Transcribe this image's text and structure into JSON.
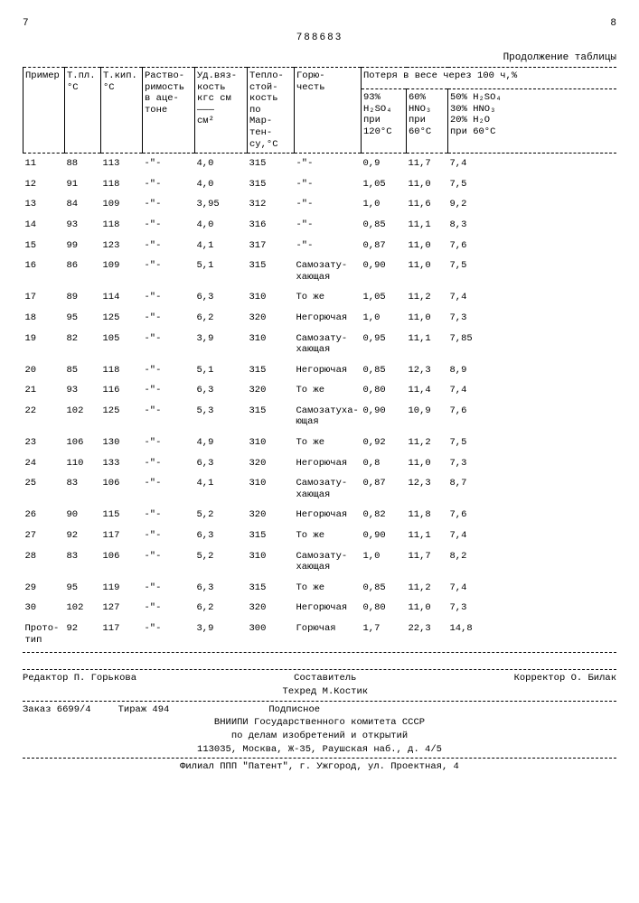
{
  "page_left": "7",
  "page_right": "8",
  "doc_number": "788683",
  "caption": "Продолжение таблицы",
  "headers": {
    "c0": "Пример",
    "c1": "Т.пл.\n°C",
    "c2": "Т.кип.\n°C",
    "c3": "Раство-\nримость\nв аце-\nтоне",
    "c4": "Уд.вяз-\nкость\nкгс см\n———\nсм²",
    "c5": "Тепло-\nстой-\nкость\nпо\nМар-\nтен-\nсу,°C",
    "c6": "Горю-\nчесть",
    "loss_top": "Потеря в весе через 100 ч,%",
    "l1": "93%\nH₂SO₄\nпри\n120°C",
    "l2": "60%\nHNO₃\nпри\n60°C",
    "l3": "50% H₂SO₄\n30% HNO₃\n20% H₂O\nпри 60°C"
  },
  "rows": [
    {
      "n": "11",
      "tpl": "88",
      "tk": "113",
      "sol": "-\"-",
      "v": "4,0",
      "ts": "315",
      "g": "-\"-",
      "l1": "0,9",
      "l2": "11,7",
      "l3": "7,4"
    },
    {
      "n": "12",
      "tpl": "91",
      "tk": "118",
      "sol": "-\"-",
      "v": "4,0",
      "ts": "315",
      "g": "-\"-",
      "l1": "1,05",
      "l2": "11,0",
      "l3": "7,5"
    },
    {
      "n": "13",
      "tpl": "84",
      "tk": "109",
      "sol": "-\"-",
      "v": "3,95",
      "ts": "312",
      "g": "-\"-",
      "l1": "1,0",
      "l2": "11,6",
      "l3": "9,2"
    },
    {
      "n": "14",
      "tpl": "93",
      "tk": "118",
      "sol": "-\"-",
      "v": "4,0",
      "ts": "316",
      "g": "-\"-",
      "l1": "0,85",
      "l2": "11,1",
      "l3": "8,3"
    },
    {
      "n": "15",
      "tpl": "99",
      "tk": "123",
      "sol": "-\"-",
      "v": "4,1",
      "ts": "317",
      "g": "-\"-",
      "l1": "0,87",
      "l2": "11,0",
      "l3": "7,6"
    },
    {
      "n": "16",
      "tpl": "86",
      "tk": "109",
      "sol": "-\"-",
      "v": "5,1",
      "ts": "315",
      "g": "Самозату-\nхающая",
      "l1": "0,90",
      "l2": "11,0",
      "l3": "7,5"
    },
    {
      "n": "17",
      "tpl": "89",
      "tk": "114",
      "sol": "-\"-",
      "v": "6,3",
      "ts": "310",
      "g": "То же",
      "l1": "1,05",
      "l2": "11,2",
      "l3": "7,4"
    },
    {
      "n": "18",
      "tpl": "95",
      "tk": "125",
      "sol": "-\"-",
      "v": "6,2",
      "ts": "320",
      "g": "Негорючая",
      "l1": "1,0",
      "l2": "11,0",
      "l3": "7,3"
    },
    {
      "n": "19",
      "tpl": "82",
      "tk": "105",
      "sol": "-\"-",
      "v": "3,9",
      "ts": "310",
      "g": "Самозату-\nхающая",
      "l1": "0,95",
      "l2": "11,1",
      "l3": "7,85"
    },
    {
      "n": "20",
      "tpl": "85",
      "tk": "118",
      "sol": "-\"-",
      "v": "5,1",
      "ts": "315",
      "g": "Негорючая",
      "l1": "0,85",
      "l2": "12,3",
      "l3": "8,9"
    },
    {
      "n": "21",
      "tpl": "93",
      "tk": "116",
      "sol": "-\"-",
      "v": "6,3",
      "ts": "320",
      "g": "То же",
      "l1": "0,80",
      "l2": "11,4",
      "l3": "7,4"
    },
    {
      "n": "22",
      "tpl": "102",
      "tk": "125",
      "sol": "-\"-",
      "v": "5,3",
      "ts": "315",
      "g": "Самозатуха-\nющая",
      "l1": "0,90",
      "l2": "10,9",
      "l3": "7,6"
    },
    {
      "n": "23",
      "tpl": "106",
      "tk": "130",
      "sol": "-\"-",
      "v": "4,9",
      "ts": "310",
      "g": "То же",
      "l1": "0,92",
      "l2": "11,2",
      "l3": "7,5"
    },
    {
      "n": "24",
      "tpl": "110",
      "tk": "133",
      "sol": "-\"-",
      "v": "6,3",
      "ts": "320",
      "g": "Негорючая",
      "l1": "0,8",
      "l2": "11,0",
      "l3": "7,3"
    },
    {
      "n": "25",
      "tpl": "83",
      "tk": "106",
      "sol": "-\"-",
      "v": "4,1",
      "ts": "310",
      "g": "Самозату-\nхающая",
      "l1": "0,87",
      "l2": "12,3",
      "l3": "8,7"
    },
    {
      "n": "26",
      "tpl": "90",
      "tk": "115",
      "sol": "-\"-",
      "v": "5,2",
      "ts": "320",
      "g": "Негорючая",
      "l1": "0,82",
      "l2": "11,8",
      "l3": "7,6"
    },
    {
      "n": "27",
      "tpl": "92",
      "tk": "117",
      "sol": "-\"-",
      "v": "6,3",
      "ts": "315",
      "g": "То же",
      "l1": "0,90",
      "l2": "11,1",
      "l3": "7,4"
    },
    {
      "n": "28",
      "tpl": "83",
      "tk": "106",
      "sol": "-\"-",
      "v": "5,2",
      "ts": "310",
      "g": "Самозату-\nхающая",
      "l1": "1,0",
      "l2": "11,7",
      "l3": "8,2"
    },
    {
      "n": "29",
      "tpl": "95",
      "tk": "119",
      "sol": "-\"-",
      "v": "6,3",
      "ts": "315",
      "g": "То же",
      "l1": "0,85",
      "l2": "11,2",
      "l3": "7,4"
    },
    {
      "n": "30",
      "tpl": "102",
      "tk": "127",
      "sol": "-\"-",
      "v": "6,2",
      "ts": "320",
      "g": "Негорючая",
      "l1": "0,80",
      "l2": "11,0",
      "l3": "7,3"
    },
    {
      "n": "Прото-\nтип",
      "tpl": "92",
      "tk": "117",
      "sol": "-\"-",
      "v": "3,9",
      "ts": "300",
      "g": "Горючая",
      "l1": "1,7",
      "l2": "22,3",
      "l3": "14,8"
    }
  ],
  "footer": {
    "compiler_label": "Составитель",
    "editor": "Редактор П. Горькова",
    "techred": "Техред М.Костик",
    "corrector": "Корректор О. Билак",
    "order": "Заказ 6699/4",
    "tirage": "Тираж 494",
    "subscribe": "Подписное",
    "org1": "ВНИИПИ Государственного комитета СССР",
    "org2": "по делам изобретений и открытий",
    "org3": "113035, Москва, Ж-35, Раушская наб., д. 4/5",
    "branch": "Филиал ППП \"Патент\", г. Ужгород, ул. Проектная, 4"
  }
}
